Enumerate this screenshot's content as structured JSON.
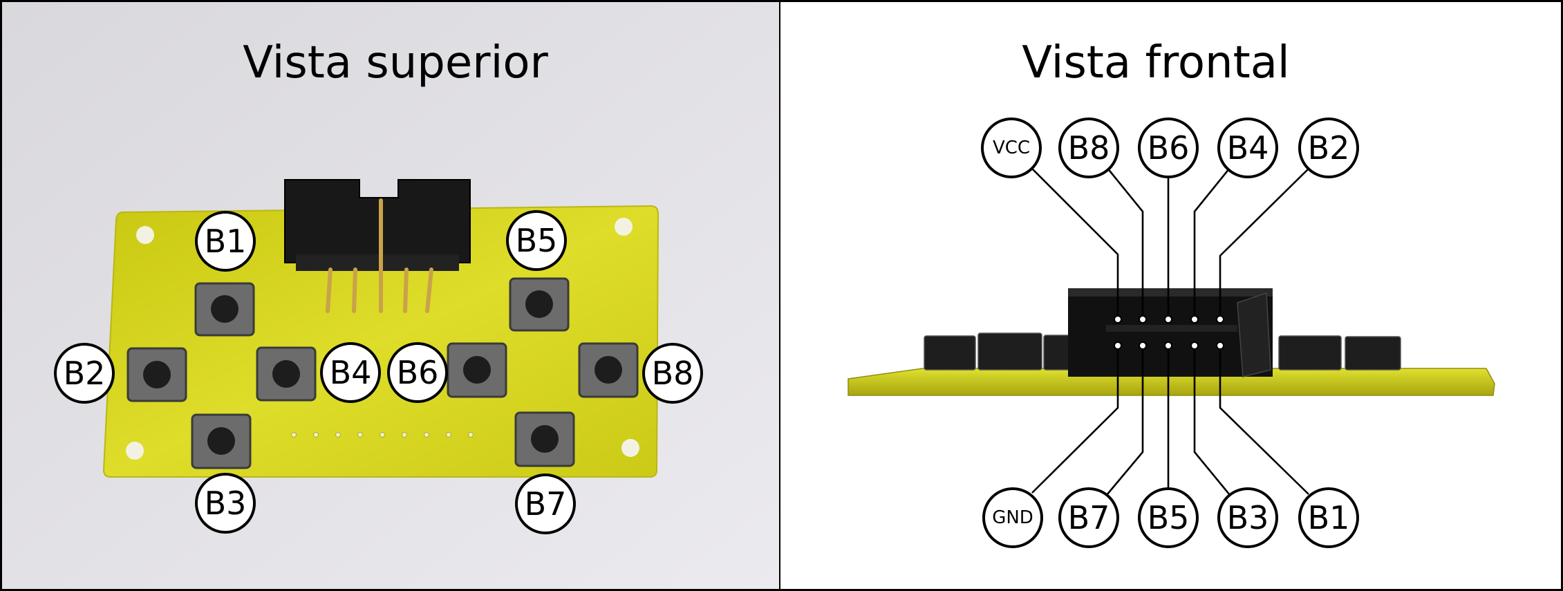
{
  "panels": {
    "top_view": {
      "title": "Vista superior"
    },
    "front_view": {
      "title": "Vista frontal"
    }
  },
  "top_view_labels": [
    "B1",
    "B2",
    "B3",
    "B4",
    "B5",
    "B6",
    "B7",
    "B8"
  ],
  "front_view_pins": {
    "top_row": [
      "VCC",
      "B8",
      "B6",
      "B4",
      "B2"
    ],
    "bottom_row": [
      "GND",
      "B7",
      "B5",
      "B3",
      "B1"
    ]
  },
  "colors": {
    "pcb": "#d2d11a",
    "background_photo": "#e3e2e6",
    "button_body": "#595959",
    "connector": "#151515",
    "frame": "#000000",
    "label_fill": "#ffffff"
  }
}
